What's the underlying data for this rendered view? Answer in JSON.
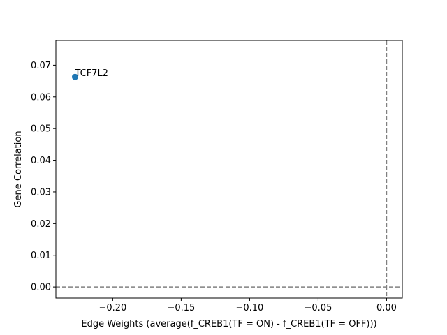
{
  "chart_data": {
    "type": "scatter",
    "title": "",
    "xlabel": "Edge Weights (average(f_CREB1(TF = ON) - f_CREB1(TF = OFF)))",
    "ylabel": "Gene Correlation",
    "xlim": [
      -0.2415,
      0.0115
    ],
    "ylim": [
      -0.0035,
      0.0778
    ],
    "x_ticks": [
      -0.2,
      -0.15,
      -0.1,
      -0.05,
      0.0
    ],
    "x_tick_labels": [
      "−0.20",
      "−0.15",
      "−0.10",
      "−0.05",
      "0.00"
    ],
    "y_ticks": [
      0.0,
      0.01,
      0.02,
      0.03,
      0.04,
      0.05,
      0.06,
      0.07
    ],
    "y_tick_labels": [
      "0.00",
      "0.01",
      "0.02",
      "0.03",
      "0.04",
      "0.05",
      "0.06",
      "0.07"
    ],
    "points": [
      {
        "x": -0.2275,
        "y": 0.0663,
        "label": "TCF7L2"
      }
    ],
    "reference_lines": [
      {
        "orientation": "vertical",
        "value": 0.0,
        "style": "dashed",
        "color": "#808080"
      },
      {
        "orientation": "horizontal",
        "value": 0.0,
        "style": "dashed",
        "color": "#808080"
      }
    ],
    "grid": false,
    "colors": {
      "marker": "#1f77b4",
      "reference": "#808080"
    }
  }
}
